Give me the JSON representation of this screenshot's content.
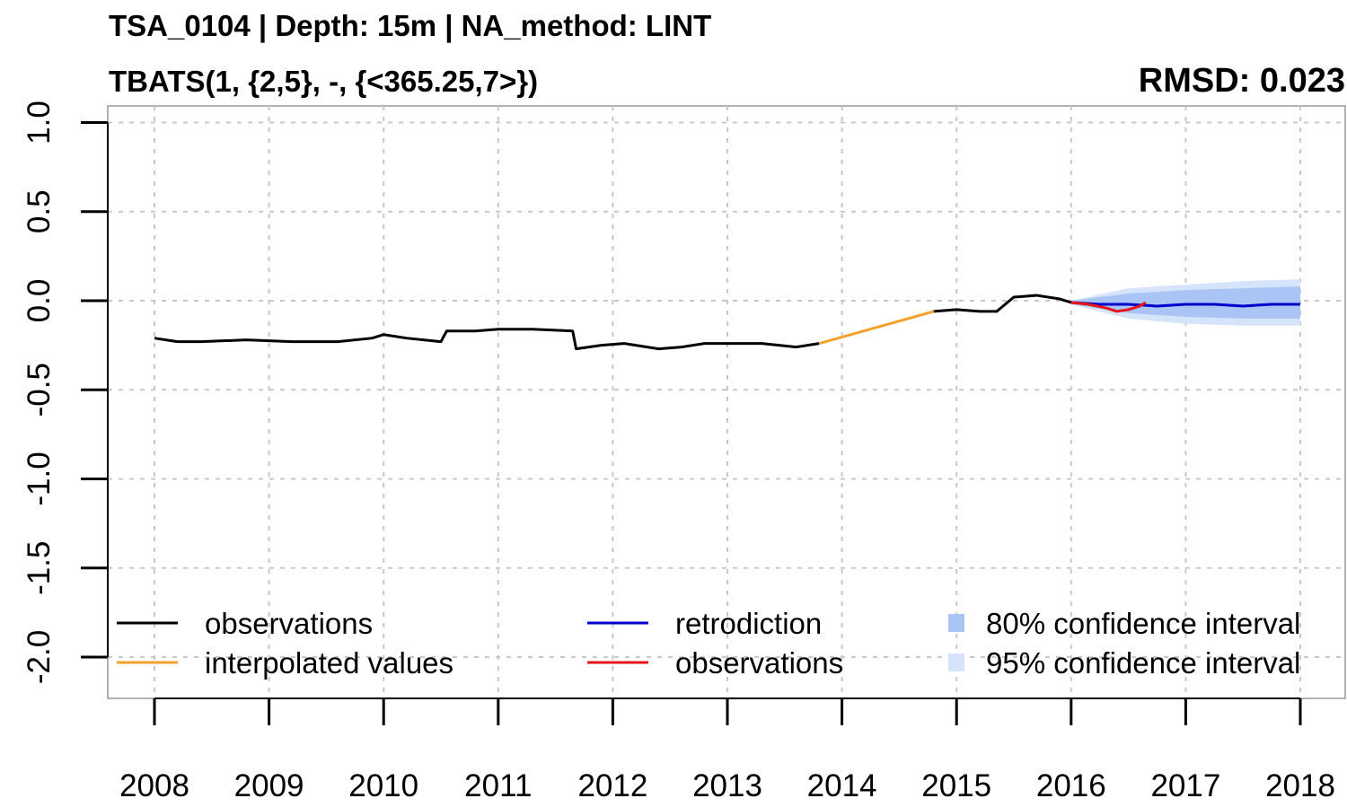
{
  "title_line1": "TSA_0104 | Depth: 15m | NA_method: LINT",
  "title_line2": "TBATS(1, {2,5}, -, {<365.25,7>})",
  "rmsd_label": "RMSD: 0.023",
  "colors": {
    "observations": "#000000",
    "interpolated": "#F4A12B",
    "retrodiction": "#0000CC",
    "observations_test": "#E8141A",
    "ci80": "#A9C4F5",
    "ci95": "#D6E4FB",
    "grid": "#C8C8C8"
  },
  "chart_data": {
    "type": "line",
    "xlim": [
      2007.6,
      2018.0
    ],
    "ylim": [
      -2.2,
      1.0
    ],
    "x_ticks": [
      2008,
      2009,
      2010,
      2011,
      2012,
      2013,
      2014,
      2015,
      2016,
      2017,
      2018
    ],
    "x_tick_labels": [
      "2008",
      "2009",
      "2010",
      "2011",
      "2012",
      "2013",
      "2014",
      "2015",
      "2016",
      "2017",
      "2018"
    ],
    "y_ticks": [
      -2.0,
      -1.5,
      -1.0,
      -0.5,
      0.0,
      0.5,
      1.0
    ],
    "y_tick_labels": [
      "-2.0",
      "-1.5",
      "-1.0",
      "-0.5",
      "0.0",
      "0.5",
      "1.0"
    ],
    "grid": true,
    "legend_position": "bottom",
    "legend": [
      {
        "label": "observations",
        "key": "observations",
        "kind": "line"
      },
      {
        "label": "interpolated values",
        "key": "interpolated",
        "kind": "line"
      },
      {
        "label": "retrodiction",
        "key": "retrodiction",
        "kind": "line"
      },
      {
        "label": "observations",
        "key": "observations_test",
        "kind": "line"
      },
      {
        "label": "80% confidence interval",
        "key": "ci80",
        "kind": "box"
      },
      {
        "label": "95% confidence interval",
        "key": "ci95",
        "kind": "box"
      }
    ],
    "series": [
      {
        "key": "observations",
        "x": [
          2008.0,
          2008.2,
          2008.4,
          2008.8,
          2009.2,
          2009.6,
          2009.9,
          2010.0,
          2010.2,
          2010.5,
          2010.55,
          2010.8,
          2011.0,
          2011.3,
          2011.65,
          2011.68,
          2011.9,
          2012.1,
          2012.4,
          2012.6,
          2012.8,
          2013.0,
          2013.3,
          2013.6,
          2013.8
        ],
        "y": [
          -0.21,
          -0.23,
          -0.23,
          -0.22,
          -0.23,
          -0.23,
          -0.21,
          -0.19,
          -0.21,
          -0.23,
          -0.17,
          -0.17,
          -0.16,
          -0.16,
          -0.17,
          -0.27,
          -0.25,
          -0.24,
          -0.27,
          -0.26,
          -0.24,
          -0.24,
          -0.24,
          -0.26,
          -0.24
        ]
      },
      {
        "key": "observations",
        "x": [
          2014.8,
          2015.0,
          2015.2,
          2015.35,
          2015.5,
          2015.7,
          2015.9,
          2016.0
        ],
        "y": [
          -0.06,
          -0.05,
          -0.06,
          -0.06,
          0.02,
          0.03,
          0.01,
          -0.01
        ]
      },
      {
        "key": "interpolated",
        "x": [
          2013.8,
          2014.8
        ],
        "y": [
          -0.24,
          -0.06
        ]
      },
      {
        "key": "retrodiction",
        "x": [
          2016.0,
          2016.25,
          2016.5,
          2016.75,
          2017.0,
          2017.25,
          2017.5,
          2017.75,
          2018.0
        ],
        "y": [
          -0.01,
          -0.02,
          -0.02,
          -0.03,
          -0.02,
          -0.02,
          -0.03,
          -0.02,
          -0.02
        ]
      },
      {
        "key": "observations_test",
        "x": [
          2016.0,
          2016.15,
          2016.3,
          2016.4,
          2016.5,
          2016.6,
          2016.65
        ],
        "y": [
          -0.01,
          -0.02,
          -0.04,
          -0.06,
          -0.05,
          -0.03,
          -0.01
        ]
      }
    ],
    "bands": [
      {
        "key": "ci95",
        "x": [
          2016.0,
          2016.5,
          2017.0,
          2017.5,
          2018.0
        ],
        "lower": [
          -0.02,
          -0.1,
          -0.13,
          -0.14,
          -0.14
        ],
        "upper": [
          0.0,
          0.07,
          0.09,
          0.11,
          0.12
        ]
      },
      {
        "key": "ci80",
        "x": [
          2016.0,
          2016.5,
          2017.0,
          2017.5,
          2018.0
        ],
        "lower": [
          -0.02,
          -0.07,
          -0.09,
          -0.1,
          -0.1
        ],
        "upper": [
          0.0,
          0.04,
          0.06,
          0.07,
          0.08
        ]
      }
    ]
  }
}
